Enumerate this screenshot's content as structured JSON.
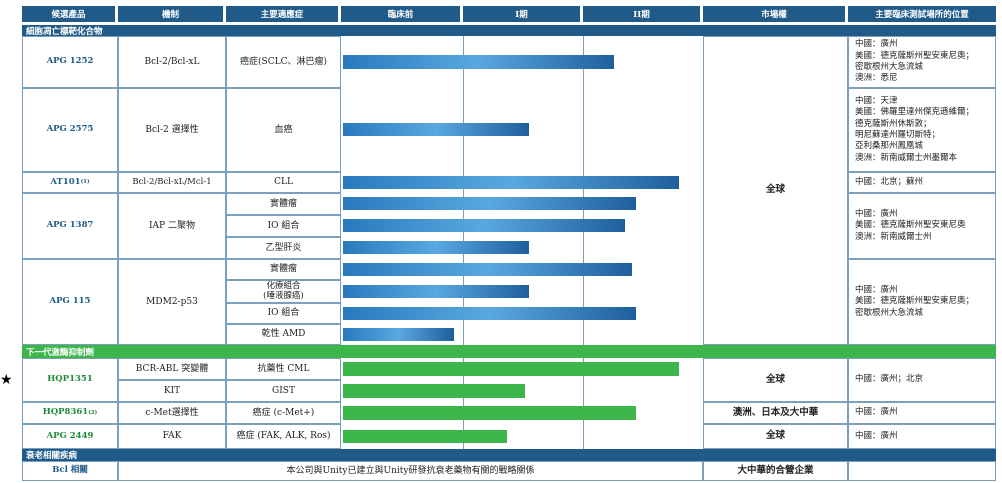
{
  "headers": [
    "候選產品",
    "機制",
    "主要適應症",
    "臨床前",
    "I期",
    "II期",
    "市場權",
    "主要臨床測試場所的位置"
  ],
  "sections": {
    "apoptosis": "細胞凋亡標靶化合物",
    "tki": "下一代激酶抑制劑",
    "aging": "衰老相關疾病"
  },
  "products": {
    "apg1252": {
      "name": "APG 1252",
      "mech": "Bcl-2/Bcl-xL",
      "ind": "癌症(SCLC、淋巴瘤)"
    },
    "apg2575": {
      "name": "APG 2575",
      "mech": "Bcl-2 選擇性",
      "ind": "血癌"
    },
    "at101": {
      "name": "AT101",
      "sup": "(1)",
      "mech": "Bcl-2/Bcl-xL/Mcl-1",
      "ind": "CLL"
    },
    "apg1387": {
      "name": "APG 1387",
      "mech": "IAP 二聚物",
      "ind": [
        "實體瘤",
        "IO 組合",
        "乙型肝炎"
      ]
    },
    "apg115": {
      "name": "APG 115",
      "mech": "MDM2-p53",
      "ind": [
        "實體瘤",
        "化療組合\n(唾液腺癌)",
        "IO 組合",
        "乾性 AMD"
      ]
    },
    "hqp1351": {
      "name": "HQP1351",
      "mech": [
        "BCR-ABL 突變體",
        "KIT"
      ],
      "ind": [
        "抗藥性 CML",
        "GIST"
      ]
    },
    "hqp8361": {
      "name": "HQP8361",
      "sup": "(2)",
      "mech": "c-Met選擇性",
      "ind": "癌症 (c-Met+)"
    },
    "apg2449": {
      "name": "APG 2449",
      "mech": "FAK",
      "ind": "癌症 (FAK, ALK, Ros)"
    },
    "bcl": {
      "name": "Bcl 相關",
      "desc": "本公司與Unity已建立與Unity研發抗衰老藥物有關的戰略關係"
    }
  },
  "markets": {
    "global1": "全球",
    "global2": "全球",
    "hqp8361": "澳洲、日本及大中華",
    "global3": "全球",
    "bcl": "大中華的合營企業"
  },
  "sites": {
    "apg1252": "中國：廣州\n美國：德克薩斯州聖安東尼奧；\n密歇根州大急流城\n澳洲：悉尼",
    "apg2575": "中國：天津\n美國：佛羅里達州傑克遜維爾；\n德克薩斯州休斯敦；\n明尼蘇達州羅切斯特；\n亞利桑那州鳳凰城\n澳洲：新南威爾士州墨爾本",
    "at101": "中國：北京；蘇州",
    "apg1387": "中國：廣州\n美國：德克薩斯州聖安東尼奧\n澳洲：新南威爾士州",
    "apg115": "中國：廣州\n美國：德克薩斯州聖安東尼奧；\n密歇根州大急流城",
    "hqp1351": "中國：廣州；北京",
    "hqp8361": "中國：廣州",
    "apg2449": "中國：廣州"
  },
  "progress": {
    "apg1252": 0.76,
    "apg2575": 0.52,
    "at101": 0.94,
    "apg1387_1": 0.82,
    "apg1387_2": 0.79,
    "apg1387_3": 0.52,
    "apg115_1": 0.81,
    "apg115_2": 0.52,
    "apg115_3": 0.82,
    "apg115_4": 0.31,
    "hqp1351_1": 0.94,
    "hqp1351_2": 0.51,
    "hqp8361": 0.82,
    "apg2449": 0.46
  },
  "colors": {
    "header": "#1f5a88",
    "green": "#3cb54a",
    "blue": "#2a79bd"
  },
  "star": "★"
}
